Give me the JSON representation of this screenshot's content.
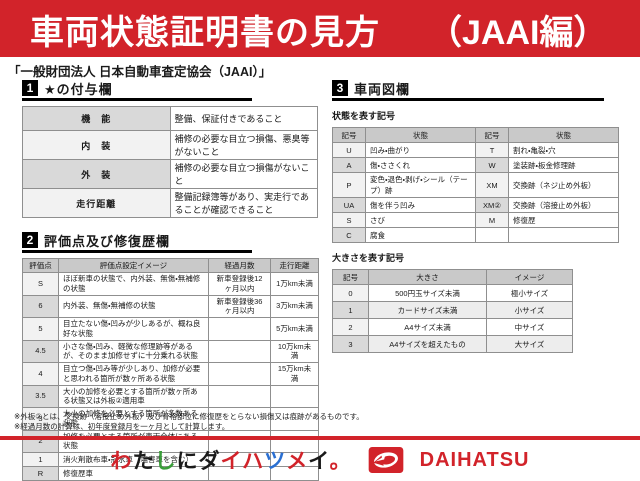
{
  "colors": {
    "accent": "#d2232a",
    "header_gray": "#c9c9c9"
  },
  "header": {
    "title": "車両状態証明書の見方",
    "edition": "（JAAI編）",
    "subtitle": "「一般財団法人 日本自動車査定協会（JAAI）」"
  },
  "section1": {
    "number": "1",
    "title": "★の付与欄",
    "rows": [
      {
        "label": "機　能",
        "desc": "整備、保証付きであること"
      },
      {
        "label": "内　装",
        "desc": "補修の必要な目立つ損傷、悪臭等がないこと"
      },
      {
        "label": "外　装",
        "desc": "補修の必要な目立つ損傷がないこと"
      },
      {
        "label": "走行距離",
        "desc": "整備記録簿等があり、実走行であることが確認できること"
      }
    ]
  },
  "section2": {
    "number": "2",
    "title": "評価点及び修復歴欄",
    "headers": [
      "評価点",
      "評価点設定イメージ",
      "経過月数",
      "走行距離"
    ],
    "rows": [
      {
        "score": "S",
        "desc": "ほぼ新車の状態で、内外装、無傷・無補修の状態",
        "months": "新車登録後12ヶ月以内",
        "mileage": "1万km未満"
      },
      {
        "score": "6",
        "desc": "内外装、無傷・無補修の状態",
        "months": "新車登録後36ヶ月以内",
        "mileage": "3万km未満"
      },
      {
        "score": "5",
        "desc": "目立たない傷・凹みが少しあるが、概ね良好な状態",
        "months": "",
        "mileage": "5万km未満"
      },
      {
        "score": "4.5",
        "desc": "小さな傷・凹み、軽微な修理跡等があるが、そのまま加修せずに十分乗れる状態",
        "months": "",
        "mileage": "10万km未満"
      },
      {
        "score": "4",
        "desc": "目立つ傷・凹み等が少しあり、加修が必要と思われる箇所が数ヶ所ある状態",
        "months": "",
        "mileage": "15万km未満"
      },
      {
        "score": "3.5",
        "desc": "大小の加修を必要とする箇所が数ヶ所ある状態又は外板②適用車",
        "months": "",
        "mileage": ""
      },
      {
        "score": "3",
        "desc": "大小の加修を必要とする箇所が多数ある状態",
        "months": "",
        "mileage": ""
      },
      {
        "score": "2",
        "desc": "加修を必要とする箇所が車両全体にある状態",
        "months": "",
        "mileage": ""
      },
      {
        "score": "1",
        "desc": "消火剤散布車・冠水車（塩害車を含む）",
        "months": "",
        "mileage": ""
      },
      {
        "score": "R",
        "desc": "修復歴車",
        "months": "",
        "mileage": ""
      }
    ]
  },
  "section3": {
    "number": "3",
    "title": "車両図欄",
    "condition": {
      "label": "状態を表す記号",
      "headers": [
        "記号",
        "状態",
        "記号",
        "状態"
      ],
      "rows": [
        {
          "sym1": "U",
          "state1": "凹み・曲がり",
          "sym2": "T",
          "state2": "割れ・亀裂・穴"
        },
        {
          "sym1": "A",
          "state1": "傷・ささくれ",
          "sym2": "W",
          "state2": "塗装跡・板金修理跡"
        },
        {
          "sym1": "P",
          "state1": "変色・退色・剥げ・シール（テープ）跡",
          "sym2": "XM",
          "state2": "交換跡（ネジ止め外板）"
        },
        {
          "sym1": "UA",
          "state1": "傷を伴う凹み",
          "sym2": "XM②",
          "state2": "交換跡（溶接止め外板）"
        },
        {
          "sym1": "S",
          "state1": "さび",
          "sym2": "M",
          "state2": "修復歴"
        },
        {
          "sym1": "C",
          "state1": "腐食",
          "sym2": "",
          "state2": ""
        }
      ]
    },
    "size": {
      "label": "大きさを表す記号",
      "headers": [
        "記号",
        "大きさ",
        "イメージ"
      ],
      "rows": [
        {
          "sym": "0",
          "size": "500円玉サイズ未満",
          "image": "極小サイズ"
        },
        {
          "sym": "1",
          "size": "カードサイズ未満",
          "image": "小サイズ"
        },
        {
          "sym": "2",
          "size": "A4サイズ未満",
          "image": "中サイズ"
        },
        {
          "sym": "3",
          "size": "A4サイズを超えたもの",
          "image": "大サイズ"
        }
      ]
    }
  },
  "footnotes": [
    "※外板②とは、交換跡（溶接止め外板）及び骨格部位に修復歴をとらない損傷又は痕跡があるものです。",
    "※経過月数の計算は、初年度登録月を一ヶ月として計算します。"
  ],
  "footer": {
    "slogan": "わたしにダイハツメイ。",
    "slogan_chars": [
      {
        "ch": "わ",
        "color": "#d2232a"
      },
      {
        "ch": "た",
        "color": "#1a1a1a"
      },
      {
        "ch": "し",
        "color": "#3a9e3a"
      },
      {
        "ch": "に",
        "color": "#1a1a1a"
      },
      {
        "ch": "ダ",
        "color": "#1a1a1a"
      },
      {
        "ch": "イ",
        "color": "#d2232a"
      },
      {
        "ch": "ハ",
        "color": "#d2232a"
      },
      {
        "ch": "ツ",
        "color": "#2a6fd2"
      },
      {
        "ch": "メ",
        "color": "#d2232a"
      },
      {
        "ch": "イ",
        "color": "#1a1a1a"
      },
      {
        "ch": "。",
        "color": "#d2232a"
      }
    ],
    "brand": "DAIHATSU"
  }
}
